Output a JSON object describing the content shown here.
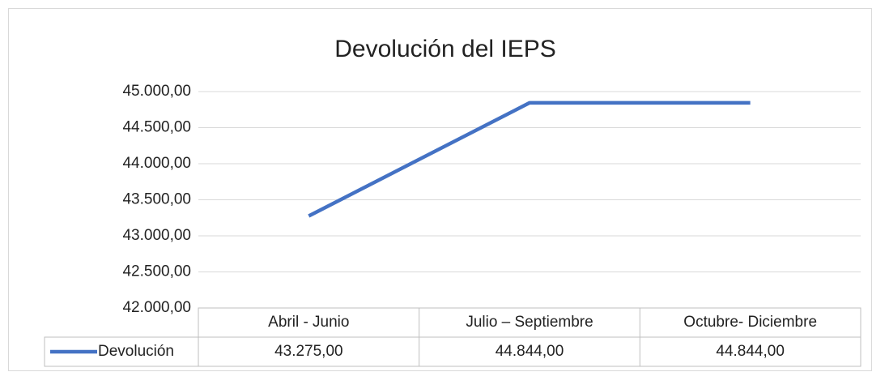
{
  "chart_data": {
    "type": "line",
    "title": "Devolución del IEPS",
    "categories": [
      "Abril - Junio",
      "Julio – Septiembre",
      "Octubre- Diciembre"
    ],
    "series": [
      {
        "name": "Devolución",
        "color": "#4472c4",
        "values": [
          43275,
          44844,
          44844
        ],
        "value_labels": [
          "43.275,00",
          "44.844,00",
          "44.844,00"
        ]
      }
    ],
    "ylim": [
      42000,
      45000
    ],
    "yticks": [
      {
        "value": 42000,
        "label": "42.000,00"
      },
      {
        "value": 42500,
        "label": "42.500,00"
      },
      {
        "value": 43000,
        "label": "43.000,00"
      },
      {
        "value": 43500,
        "label": "43.500,00"
      },
      {
        "value": 44000,
        "label": "44.000,00"
      },
      {
        "value": 44500,
        "label": "44.500,00"
      },
      {
        "value": 45000,
        "label": "45.000,00"
      }
    ],
    "grid": true,
    "data_table": true
  }
}
